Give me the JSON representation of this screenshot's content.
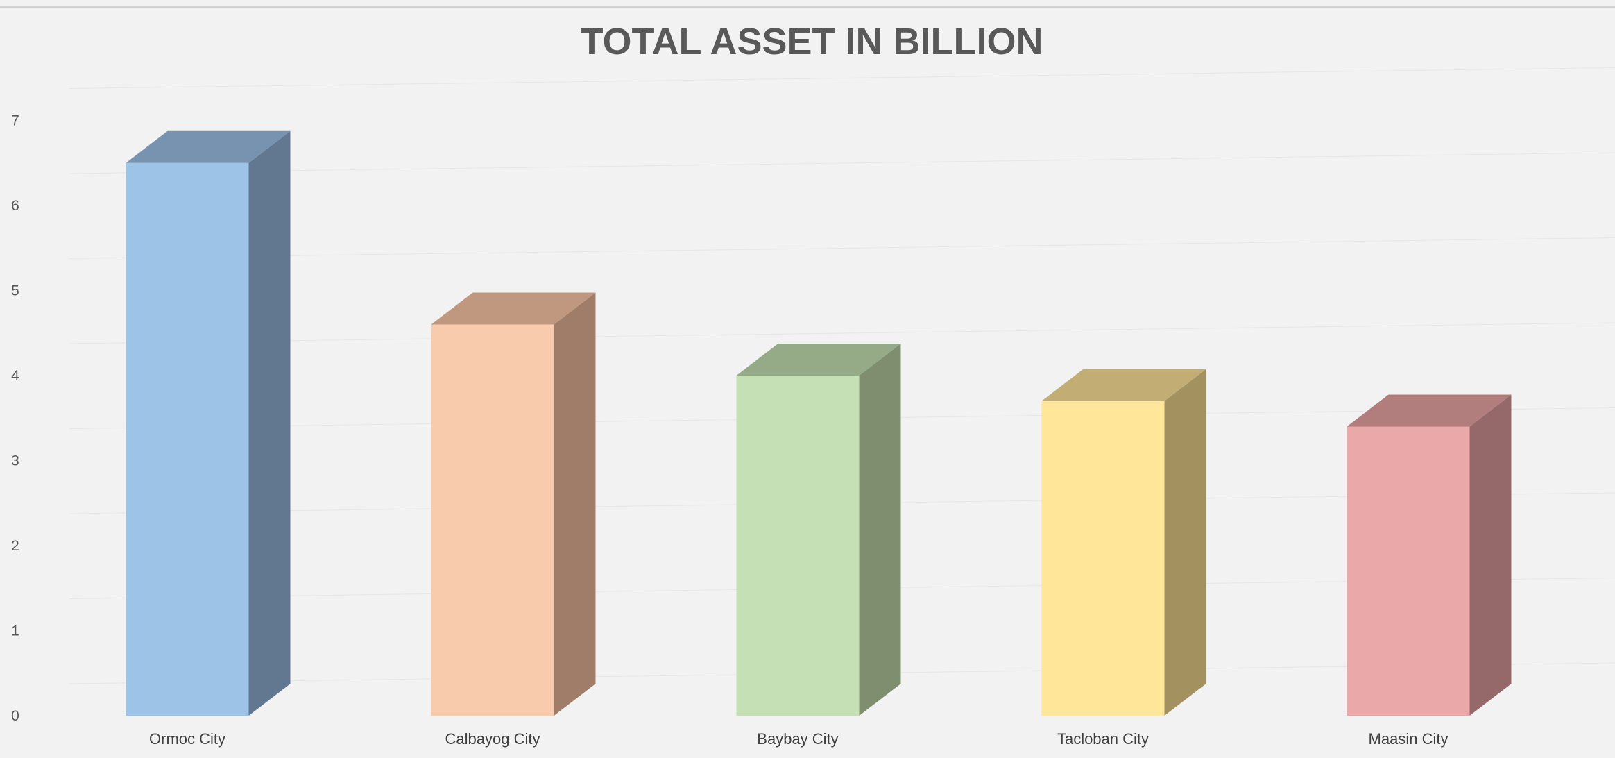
{
  "chart_data": {
    "type": "bar",
    "style": "3d-column",
    "title": "TOTAL ASSET IN BILLION",
    "categories": [
      "Ormoc City",
      "Calbayog City",
      "Baybay City",
      "Tacloban City",
      "Maasin City"
    ],
    "values": [
      6.5,
      4.6,
      4.0,
      3.7,
      3.4
    ],
    "ylim": [
      0,
      7
    ],
    "yticks": [
      "0",
      "1",
      "2",
      "3",
      "4",
      "5",
      "6",
      "7"
    ],
    "grid": true,
    "legend": "none",
    "colors": [
      {
        "front": "#9dc3e6",
        "side": "#617890",
        "top": "#7793b0"
      },
      {
        "front": "#f8cbad",
        "side": "#a07d68",
        "top": "#c09880"
      },
      {
        "front": "#c5e0b4",
        "side": "#7e8e6f",
        "top": "#95aa87"
      },
      {
        "front": "#ffe699",
        "side": "#a3915f",
        "top": "#c2ae74"
      },
      {
        "front": "#eaa8a8",
        "side": "#956969",
        "top": "#b27d7d"
      }
    ]
  }
}
